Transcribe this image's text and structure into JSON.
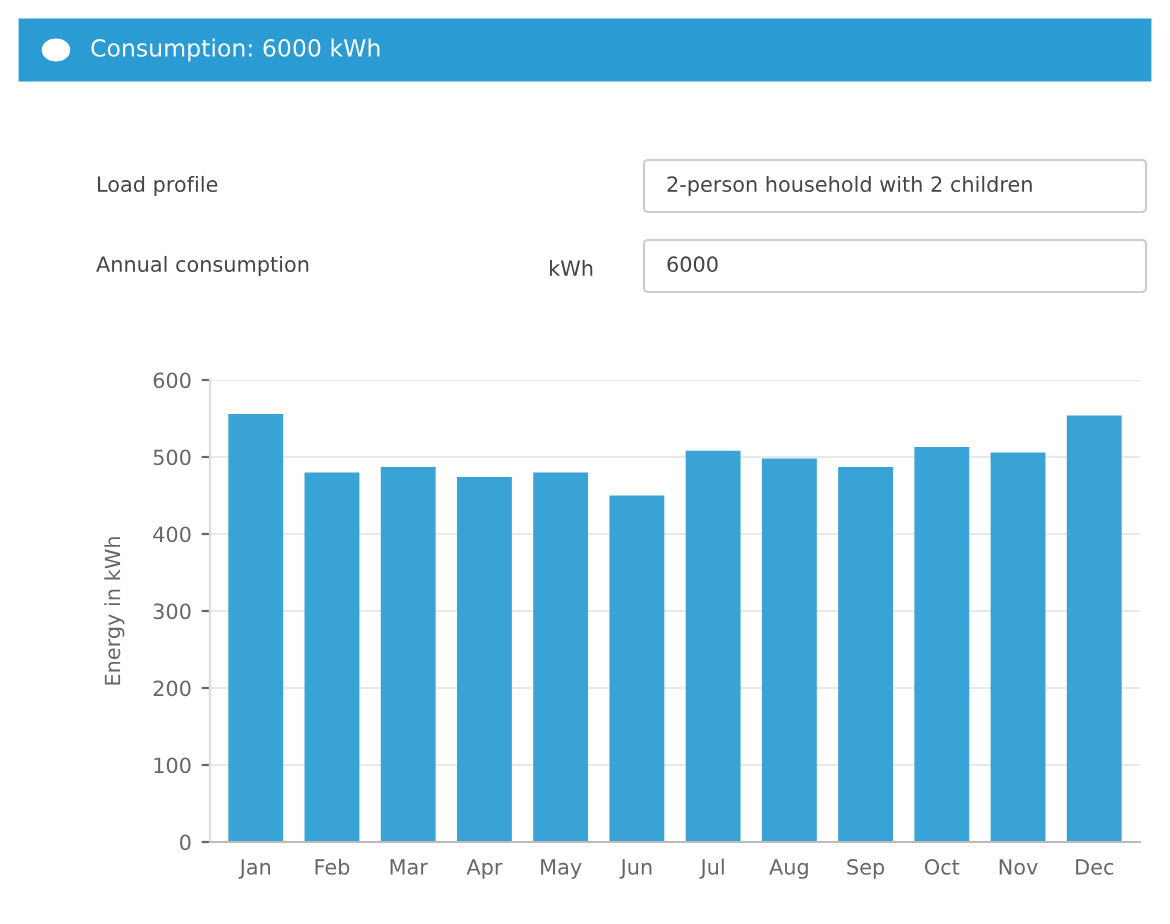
{
  "chart_data": {
    "type": "bar",
    "title": "Consumption: 6000 kWh",
    "annotations": [
      "Load profile",
      "2-person household with 2 children",
      "Annual consumption",
      "kWh",
      "6000"
    ],
    "ylabel": "Energy in kWh",
    "categories": [
      "Jan",
      "Feb",
      "Mar",
      "Apr",
      "May",
      "Jun",
      "Jul",
      "Aug",
      "Sep",
      "Oct",
      "Nov",
      "Dec"
    ],
    "values": [
      556,
      480,
      487,
      474,
      480,
      450,
      508,
      498,
      487,
      513,
      506,
      554
    ],
    "color": "#3aa3d6",
    "ylim": [
      0,
      600
    ],
    "yticks": [
      0,
      100,
      200,
      300,
      400,
      500,
      600
    ],
    "grid": "y"
  }
}
